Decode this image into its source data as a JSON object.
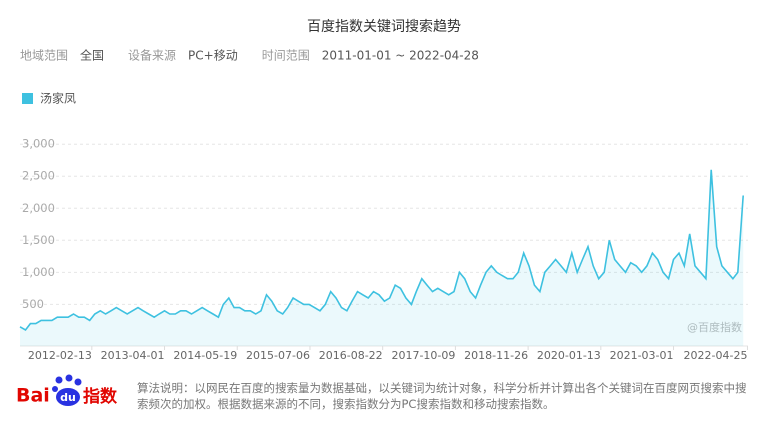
{
  "chart_data": {
    "type": "line",
    "title": "百度指数关键词搜索趋势",
    "filters": [
      [
        "地域范围",
        "全国"
      ],
      [
        "设备来源",
        "PC+移动"
      ],
      [
        "时间范围",
        "2011-01-01 ~ 2022-04-28"
      ]
    ],
    "watermark": "@百度指数",
    "logo": [
      "Bai",
      "du",
      "指数"
    ],
    "note": "算法说明：以网民在百度的搜索量为数据基础，以关键词为统计对象，科学分析并计算出各个关键词在百度网页搜索中搜索频次的加权。根据数据来源的不同，搜索指数分为PC搜索指数和移动搜索指数。",
    "x": [
      "2011-01-01",
      "2011-02-01",
      "2011-03-01",
      "2011-04-01",
      "2011-05-01",
      "2011-06-01",
      "2011-07-01",
      "2011-08-01",
      "2011-09-01",
      "2011-10-01",
      "2011-11-01",
      "2011-12-01",
      "2012-01-01",
      "2012-02-01",
      "2012-03-01",
      "2012-04-01",
      "2012-05-01",
      "2012-06-01",
      "2012-07-01",
      "2012-08-01",
      "2012-09-01",
      "2012-10-01",
      "2012-11-01",
      "2012-12-01",
      "2013-01-01",
      "2013-02-01",
      "2013-03-01",
      "2013-04-01",
      "2013-05-01",
      "2013-06-01",
      "2013-07-01",
      "2013-08-01",
      "2013-09-01",
      "2013-10-01",
      "2013-11-01",
      "2013-12-01",
      "2014-01-01",
      "2014-02-01",
      "2014-03-01",
      "2014-04-01",
      "2014-05-01",
      "2014-06-01",
      "2014-07-01",
      "2014-08-01",
      "2014-09-01",
      "2014-10-01",
      "2014-11-01",
      "2014-12-01",
      "2015-01-01",
      "2015-02-01",
      "2015-03-01",
      "2015-04-01",
      "2015-05-01",
      "2015-06-01",
      "2015-07-01",
      "2015-08-01",
      "2015-09-01",
      "2015-10-01",
      "2015-11-01",
      "2015-12-01",
      "2016-01-01",
      "2016-02-01",
      "2016-03-01",
      "2016-04-01",
      "2016-05-01",
      "2016-06-01",
      "2016-07-01",
      "2016-08-01",
      "2016-09-01",
      "2016-10-01",
      "2016-11-01",
      "2016-12-01",
      "2017-01-01",
      "2017-02-01",
      "2017-03-01",
      "2017-04-01",
      "2017-05-01",
      "2017-06-01",
      "2017-07-01",
      "2017-08-01",
      "2017-09-01",
      "2017-10-01",
      "2017-11-01",
      "2017-12-01",
      "2018-01-01",
      "2018-02-01",
      "2018-03-01",
      "2018-04-01",
      "2018-05-01",
      "2018-06-01",
      "2018-07-01",
      "2018-08-01",
      "2018-09-01",
      "2018-10-01",
      "2018-11-01",
      "2018-12-01",
      "2019-01-01",
      "2019-02-01",
      "2019-03-01",
      "2019-04-01",
      "2019-05-01",
      "2019-06-01",
      "2019-07-01",
      "2019-08-01",
      "2019-09-01",
      "2019-10-01",
      "2019-11-01",
      "2019-12-01",
      "2020-01-01",
      "2020-02-01",
      "2020-03-01",
      "2020-04-01",
      "2020-05-01",
      "2020-06-01",
      "2020-07-01",
      "2020-08-01",
      "2020-09-01",
      "2020-10-01",
      "2020-11-01",
      "2020-12-01",
      "2021-01-01",
      "2021-02-01",
      "2021-03-01",
      "2021-04-01",
      "2021-05-01",
      "2021-06-01",
      "2021-07-01",
      "2021-08-01",
      "2021-09-01",
      "2021-10-01",
      "2021-11-01",
      "2021-12-01",
      "2022-01-01",
      "2022-02-01",
      "2022-03-01",
      "2022-04-01"
    ],
    "series": [
      {
        "name": "汤家凤",
        "color": "#3ec1e0",
        "values": [
          150,
          100,
          200,
          200,
          250,
          250,
          250,
          300,
          300,
          300,
          350,
          300,
          300,
          250,
          350,
          400,
          350,
          400,
          450,
          400,
          350,
          400,
          450,
          400,
          350,
          300,
          350,
          400,
          350,
          350,
          400,
          400,
          350,
          400,
          450,
          400,
          350,
          300,
          500,
          600,
          450,
          450,
          400,
          400,
          350,
          400,
          650,
          550,
          400,
          350,
          450,
          600,
          550,
          500,
          500,
          450,
          400,
          500,
          700,
          600,
          450,
          400,
          550,
          700,
          650,
          600,
          700,
          650,
          550,
          600,
          800,
          750,
          600,
          500,
          700,
          900,
          800,
          700,
          750,
          700,
          650,
          700,
          1000,
          900,
          700,
          600,
          800,
          1000,
          1100,
          1000,
          950,
          900,
          900,
          1000,
          1300,
          1100,
          800,
          700,
          1000,
          1100,
          1200,
          1100,
          1000,
          1300,
          1000,
          1200,
          1400,
          1100,
          900,
          1000,
          1500,
          1200,
          1100,
          1000,
          1150,
          1100,
          1000,
          1100,
          1300,
          1200,
          1000,
          900,
          1200,
          1300,
          1100,
          1600,
          1100,
          1000,
          900,
          2600,
          1400,
          1100,
          1000,
          900,
          1000,
          2200
        ]
      }
    ],
    "xlim": [
      "2011-01-01",
      "2022-04-28"
    ],
    "xticks": [
      "2012-02-13",
      "2013-04-01",
      "2014-05-19",
      "2015-07-06",
      "2016-08-22",
      "2017-10-09",
      "2018-11-26",
      "2020-01-13",
      "2021-03-01",
      "2022-04-25"
    ],
    "ylim": [
      -150,
      3300
    ],
    "yticks": [
      500,
      {
        "value": 1000,
        "label": "1,000"
      },
      {
        "value": 1500,
        "label": "1,500"
      },
      {
        "value": 2000,
        "label": "2,000"
      },
      {
        "value": 2500,
        "label": "2,500"
      },
      {
        "value": 3000,
        "label": "3,000"
      }
    ],
    "grid": true
  }
}
